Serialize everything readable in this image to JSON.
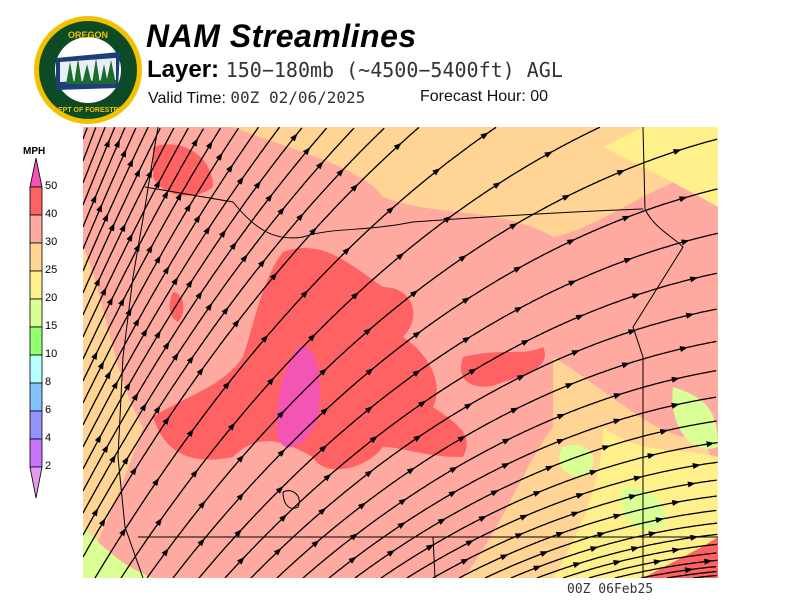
{
  "header": {
    "title": "NAM Streamlines",
    "layer_label": "Layer:",
    "layer_value": "150−180mb (~4500−5400ft) AGL",
    "valid_label": "Valid Time:",
    "valid_value": "00Z 02/06/2025",
    "forecast_label": "Forecast Hour:",
    "forecast_value": "00"
  },
  "logo": {
    "text_top": "OREGON",
    "text_bottom": "DEPARTMENT OF FORESTRY"
  },
  "legend": {
    "unit": "MPH",
    "ticks": [
      "50",
      "40",
      "30",
      "25",
      "20",
      "15",
      "10",
      "8",
      "6",
      "4",
      "2"
    ],
    "colors": {
      "above_50": "#f455b4",
      "40_50": "#ff6262",
      "30_40": "#ffaaa0",
      "25_30": "#ffd494",
      "20_25": "#fff08c",
      "15_20": "#daff94",
      "10_15": "#94ff6e",
      "8_10": "#b4ffff",
      "6_8": "#82c2ff",
      "4_6": "#9494ff",
      "2_4": "#c874ff",
      "below_2": "#e69af2"
    }
  },
  "footer": {
    "stamp": "00Z 06Feb25"
  }
}
